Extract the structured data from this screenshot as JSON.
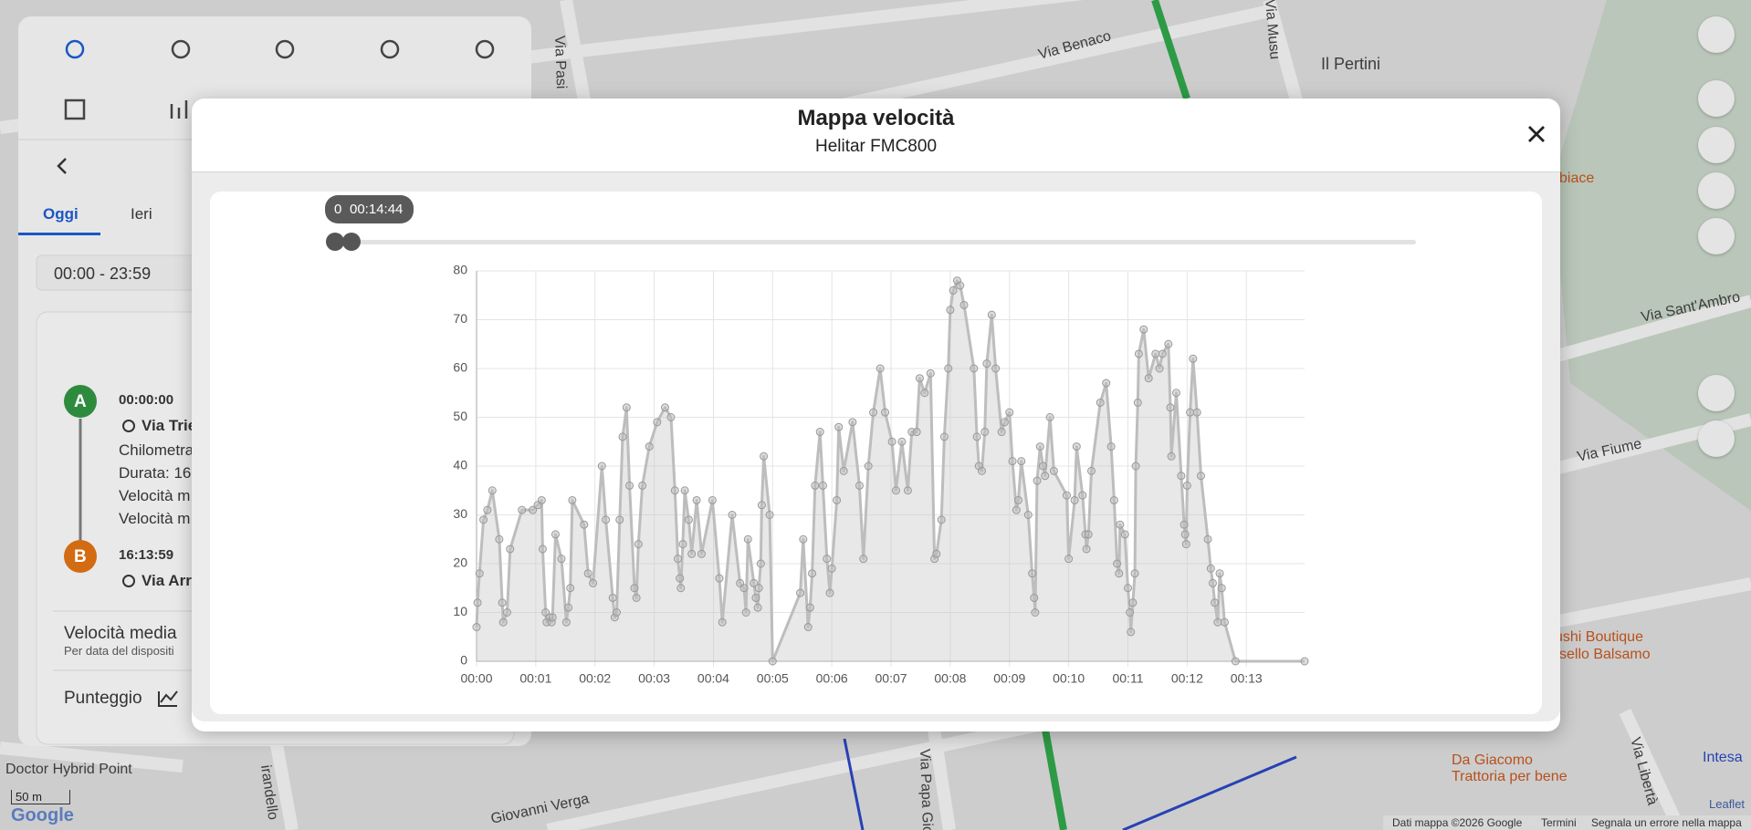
{
  "sidebar": {
    "tabs": [
      "Oggi",
      "Ieri"
    ],
    "time_range": "00:00 - 23:59",
    "start": {
      "marker": "A",
      "time": "00:00:00",
      "address": "Via Trie",
      "lines": [
        "Chilometra",
        "Durata: 16:",
        "Velocità m",
        "Velocità m"
      ]
    },
    "end": {
      "marker": "B",
      "time": "16:13:59",
      "address": "Via Arr"
    },
    "average_speed": {
      "title": "Velocità media",
      "subtitle": "Per data del dispositi"
    },
    "score": "Punteggio"
  },
  "map": {
    "labels": [
      "Via Benaco",
      "Il Pertini",
      "Via Sant'Ambro",
      "Via Fiume",
      "biace",
      "ushi Boutique",
      "sello Balsamo",
      "Da Giacomo",
      "Trattoria per bene",
      "Intesa",
      "Via Libertà",
      "Via Papa Gio",
      "Giovanni Verga",
      "irandello",
      "Doctor Hybrid Point",
      "Via Pasi",
      "Via Musu"
    ],
    "scale": "50 m",
    "logo": "Google",
    "attribution": [
      "Leaflet",
      "Dati mappa ©2026 Google",
      "Termini",
      "Segnala un errore nella mappa"
    ]
  },
  "modal": {
    "title": "Mappa velocità",
    "subtitle": "Helitar FMC800",
    "slider": {
      "start": "0",
      "end": "00:14:44"
    }
  },
  "chart_data": {
    "type": "line",
    "color": "#bdbdbd",
    "grid": true,
    "x": [
      0,
      1,
      3,
      7,
      11,
      16,
      23,
      26,
      27,
      31,
      34,
      46,
      57,
      62,
      66,
      67,
      70,
      71,
      74,
      76,
      77,
      80,
      86,
      91,
      93,
      95,
      97,
      109,
      113,
      118,
      127,
      131,
      138,
      140,
      142,
      145,
      148,
      152,
      155,
      160,
      162,
      164,
      168,
      175,
      183,
      191,
      197,
      201,
      204,
      206,
      207,
      209,
      211,
      215,
      218,
      223,
      228,
      239,
      246,
      249,
      259,
      267,
      271,
      273,
      275,
      281,
      283,
      285,
      286,
      288,
      289,
      291,
      297,
      300,
      328,
      331,
      336,
      338,
      340,
      343,
      348,
      351,
      355,
      358,
      360,
      365,
      367,
      372,
      381,
      388,
      392,
      397,
      402,
      409,
      414,
      421,
      425,
      431,
      437,
      441,
      446,
      449,
      454,
      460,
      464,
      466,
      471,
      474,
      478,
      480,
      483,
      487,
      490,
      494,
      504,
      507,
      509,
      512,
      515,
      517,
      522,
      526,
      532,
      535,
      540,
      543,
      547,
      549,
      552,
      559,
      563,
      565,
      566,
      568,
      571,
      574,
      576,
      581,
      585,
      598,
      600,
      606,
      608,
      614,
      617,
      618,
      620,
      623,
      632,
      638,
      643,
      646,
      649,
      651,
      652,
      657,
      660,
      662,
      663,
      665,
      667,
      668,
      670,
      671,
      676,
      681,
      688,
      692,
      695,
      701,
      703,
      704,
      709,
      714,
      717,
      718,
      719,
      720,
      723,
      726,
      730,
      734,
      741,
      744,
      746,
      748,
      751,
      753,
      755,
      758,
      769,
      839
    ],
    "values": [
      7,
      12,
      18,
      29,
      31,
      35,
      25,
      12,
      8,
      10,
      23,
      31,
      31,
      32,
      33,
      23,
      10,
      8,
      9,
      8,
      9,
      26,
      21,
      8,
      11,
      15,
      33,
      28,
      18,
      16,
      40,
      29,
      13,
      9,
      10,
      29,
      46,
      52,
      36,
      15,
      13,
      24,
      36,
      44,
      49,
      52,
      50,
      35,
      21,
      17,
      15,
      24,
      35,
      29,
      22,
      33,
      22,
      33,
      17,
      8,
      30,
      16,
      15,
      10,
      25,
      16,
      13,
      11,
      15,
      20,
      32,
      42,
      30,
      0,
      14,
      25,
      7,
      11,
      18,
      36,
      47,
      36,
      21,
      14,
      19,
      33,
      48,
      39,
      49,
      36,
      21,
      40,
      51,
      60,
      51,
      45,
      35,
      45,
      35,
      47,
      47,
      58,
      55,
      59,
      21,
      22,
      29,
      46,
      60,
      72,
      76,
      78,
      77,
      73,
      60,
      46,
      40,
      39,
      47,
      61,
      71,
      60,
      47,
      49,
      51,
      41,
      31,
      33,
      41,
      30,
      18,
      13,
      10,
      37,
      44,
      40,
      38,
      50,
      39,
      34,
      21,
      33,
      44,
      34,
      26,
      23,
      26,
      39,
      53,
      57,
      44,
      33,
      20,
      18,
      28,
      26,
      15,
      10,
      6,
      12,
      18,
      40,
      53,
      63,
      68,
      58,
      63,
      60,
      63,
      65,
      52,
      42,
      55,
      38,
      28,
      26,
      24,
      36,
      51,
      62,
      51,
      38,
      25,
      19,
      16,
      12,
      8,
      18,
      15,
      8,
      0,
      0
    ],
    "xlim": [
      0,
      839
    ],
    "xticks": [
      {
        "value": 0,
        "label": "00:00"
      },
      {
        "value": 60,
        "label": "00:01"
      },
      {
        "value": 120,
        "label": "00:02"
      },
      {
        "value": 180,
        "label": "00:03"
      },
      {
        "value": 240,
        "label": "00:04"
      },
      {
        "value": 300,
        "label": "00:05"
      },
      {
        "value": 360,
        "label": "00:06"
      },
      {
        "value": 420,
        "label": "00:07"
      },
      {
        "value": 480,
        "label": "00:08"
      },
      {
        "value": 540,
        "label": "00:09"
      },
      {
        "value": 600,
        "label": "00:10"
      },
      {
        "value": 660,
        "label": "00:11"
      },
      {
        "value": 720,
        "label": "00:12"
      },
      {
        "value": 780,
        "label": "00:13"
      }
    ],
    "ylim": [
      0,
      80
    ],
    "yticks": [
      0,
      10,
      20,
      30,
      40,
      50,
      60,
      70,
      80
    ]
  }
}
